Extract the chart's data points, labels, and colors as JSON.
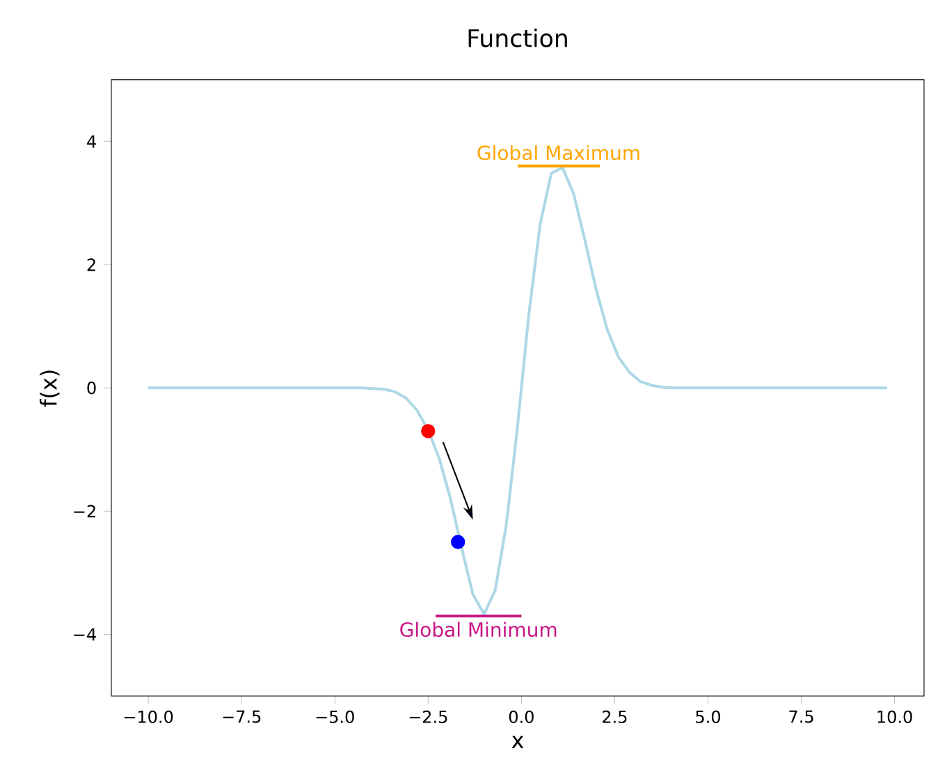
{
  "chart_data": {
    "type": "line",
    "title": "Function",
    "xlabel": "x",
    "ylabel": "f(x)",
    "xlim": [
      -10.99,
      10.79
    ],
    "ylim": [
      -5,
      5
    ],
    "xticks": [
      {
        "value": -10,
        "label": "−10.0"
      },
      {
        "value": -7.5,
        "label": "−7.5"
      },
      {
        "value": -5,
        "label": "−5.0"
      },
      {
        "value": -2.5,
        "label": "−2.5"
      },
      {
        "value": 0,
        "label": "0.0"
      },
      {
        "value": 2.5,
        "label": "2.5"
      },
      {
        "value": 5,
        "label": "5.0"
      },
      {
        "value": 7.5,
        "label": "7.5"
      },
      {
        "value": 10,
        "label": "10.0"
      }
    ],
    "yticks": [
      {
        "value": -4,
        "label": "−4"
      },
      {
        "value": -2,
        "label": "−2"
      },
      0,
      2,
      4
    ],
    "series": [
      {
        "color": "#add8e6",
        "x": [
          -10,
          -9.7,
          -9.4,
          -9.1,
          -8.8,
          -8.5,
          -8.2,
          -7.9,
          -7.6,
          -7.3,
          -7,
          -6.7,
          -6.4,
          -6.1,
          -5.8,
          -5.5,
          -5.2,
          -4.9,
          -4.6,
          -4.3,
          -4,
          -3.7,
          -3.4,
          -3.1,
          -2.8,
          -2.5,
          -2.2,
          -1.9,
          -1.6,
          -1.3,
          -1,
          -0.7,
          -0.4,
          -0.1,
          0.2,
          0.5,
          0.8,
          1.1,
          1.4,
          1.7,
          2,
          2.3,
          2.6,
          2.9,
          3.2,
          3.5,
          3.8,
          4.1,
          4.4,
          4.7,
          5,
          5.3,
          5.6,
          5.9,
          6.2,
          6.5,
          6.8,
          7.1,
          7.4,
          7.7,
          8,
          8.3,
          8.6,
          8.9,
          9.2,
          9.5,
          9.8
        ],
        "values": [
          0,
          0,
          0,
          0,
          0,
          0,
          0,
          0,
          0,
          0,
          0,
          0,
          0,
          0,
          0,
          0,
          0,
          0,
          0,
          0,
          -0.01,
          -0.02,
          -0.06,
          -0.16,
          -0.36,
          -0.68,
          -1.15,
          -1.8,
          -2.6,
          -3.35,
          -3.67,
          -3.28,
          -2.2,
          -0.6,
          1.2,
          2.65,
          3.48,
          3.58,
          3.15,
          2.4,
          1.6,
          0.95,
          0.5,
          0.25,
          0.1,
          0.04,
          0.01,
          0,
          0,
          0,
          0,
          0,
          0,
          0,
          0,
          0,
          0,
          0,
          0,
          0,
          0,
          0,
          0,
          0,
          0,
          0,
          0
        ]
      },
      {
        "name": "Global Maximum",
        "color": "#ffa500",
        "x": [
          -0.1,
          2.1
        ],
        "values": [
          3.6,
          3.6
        ]
      },
      {
        "name": "Global Minimum",
        "color": "#c71585",
        "x": [
          -2.3,
          0
        ],
        "values": [
          -3.7,
          -3.7
        ]
      },
      {
        "type": "scatter",
        "color": "#ff0000",
        "x": [
          -2.5
        ],
        "values": [
          -0.7
        ]
      },
      {
        "type": "scatter",
        "color": "#0000ff",
        "x": [
          -1.7
        ],
        "values": [
          -2.5
        ]
      }
    ]
  }
}
